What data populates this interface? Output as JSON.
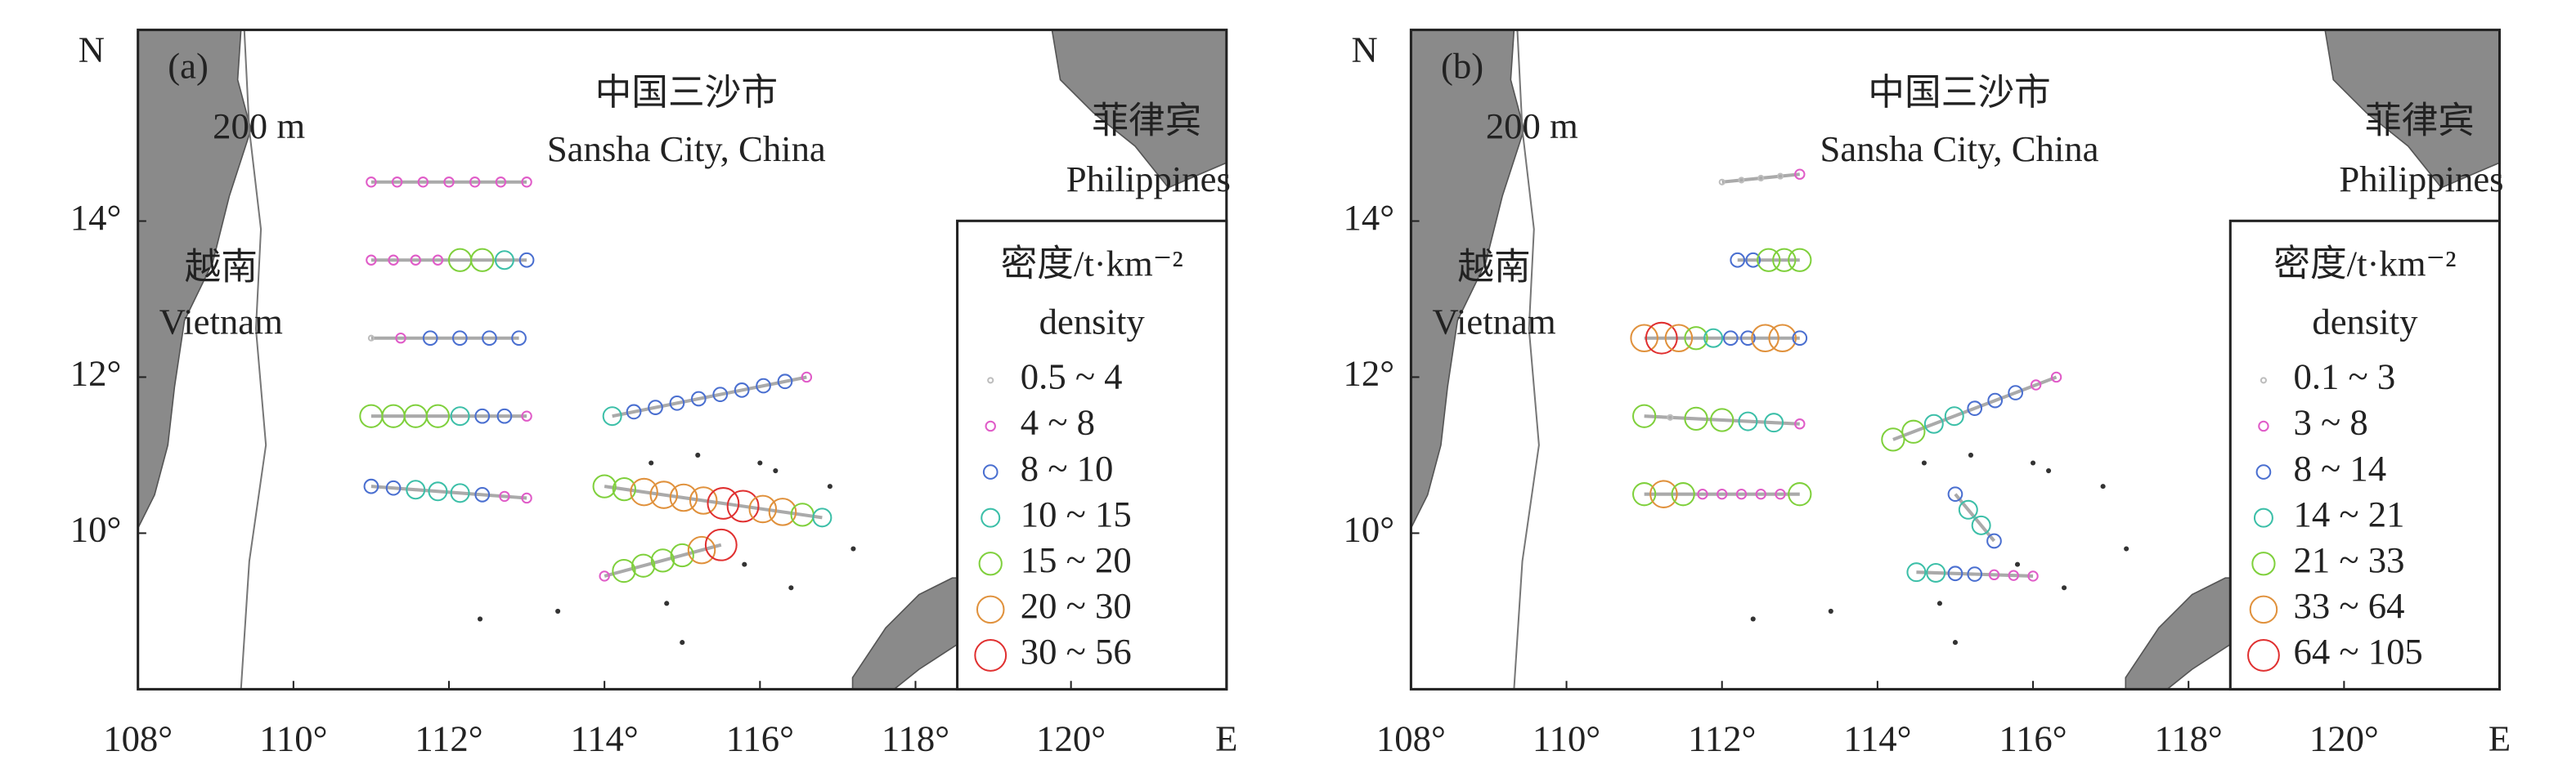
{
  "axes": {
    "xlim": [
      108,
      122
    ],
    "ylim": [
      8,
      16.45
    ],
    "xticks": [
      {
        "value": 108,
        "label": "108°"
      },
      {
        "value": 110,
        "label": "110°"
      },
      {
        "value": 112,
        "label": "112°"
      },
      {
        "value": 114,
        "label": "114°"
      },
      {
        "value": 116,
        "label": "116°"
      },
      {
        "value": 118,
        "label": "118°"
      },
      {
        "value": 120,
        "label": "120°"
      }
    ],
    "yticks": [
      {
        "value": 10,
        "label": "10°"
      },
      {
        "value": 12,
        "label": "12°"
      },
      {
        "value": 14,
        "label": "14°"
      }
    ],
    "x_unit": "E",
    "y_unit": "N"
  },
  "panels": [
    {
      "label": "(a)",
      "isobath": "200 m",
      "places": {
        "sansha_zh": "中国三沙市",
        "sansha_en": "Sansha City, China",
        "philippines_zh": "菲律宾",
        "philippines_en": "Philippines",
        "vietnam_zh": "越南",
        "vietnam_en": "Vietnam"
      },
      "legend": {
        "title": "密度/t·km⁻²",
        "subtitle": "density",
        "entries": [
          {
            "label": "0.5 ~ 4",
            "color": "#bdbdbd"
          },
          {
            "label": "4 ~ 8",
            "color": "#e05cc8"
          },
          {
            "label": "8 ~ 10",
            "color": "#4a6fd0"
          },
          {
            "label": "10 ~ 15",
            "color": "#3cbfa8"
          },
          {
            "label": "15 ~ 20",
            "color": "#7fd03c"
          },
          {
            "label": "20 ~ 30",
            "color": "#e0913c"
          },
          {
            "label": "30 ~ 56",
            "color": "#e03030"
          }
        ]
      }
    },
    {
      "label": "(b)",
      "isobath": "200 m",
      "places": {
        "sansha_zh": "中国三沙市",
        "sansha_en": "Sansha City, China",
        "philippines_zh": "菲律宾",
        "philippines_en": "Philippines",
        "vietnam_zh": "越南",
        "vietnam_en": "Vietnam"
      },
      "legend": {
        "title": "密度/t·km⁻²",
        "subtitle": "density",
        "entries": [
          {
            "label": "0.1 ~ 3",
            "color": "#bdbdbd"
          },
          {
            "label": "3 ~ 8",
            "color": "#e05cc8"
          },
          {
            "label": "8 ~ 14",
            "color": "#4a6fd0"
          },
          {
            "label": "14 ~ 21",
            "color": "#3cbfa8"
          },
          {
            "label": "21 ~ 33",
            "color": "#7fd03c"
          },
          {
            "label": "33 ~ 64",
            "color": "#e0913c"
          },
          {
            "label": "64 ~ 105",
            "color": "#e03030"
          }
        ]
      }
    }
  ]
}
